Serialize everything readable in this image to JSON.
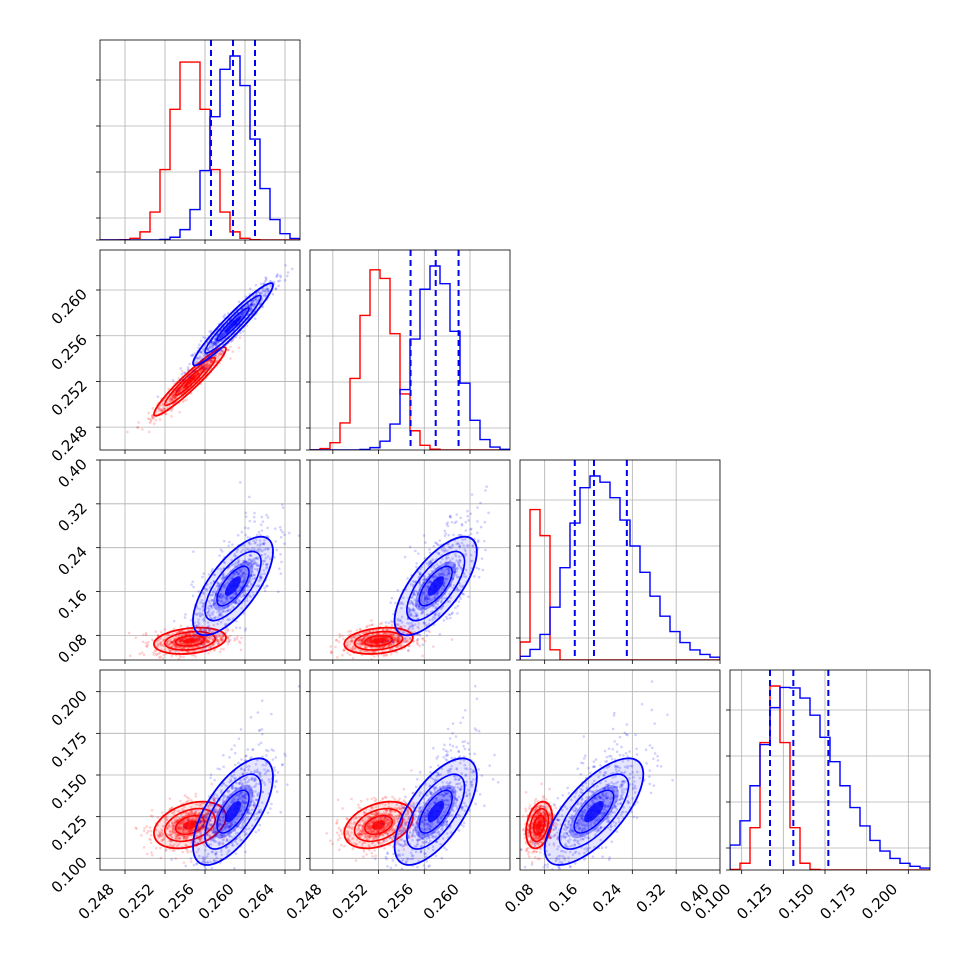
{
  "chart_data": {
    "type": "corner",
    "grid": true,
    "colors": {
      "red": "#ff0000",
      "blue": "#0000ff"
    },
    "parameters": [
      {
        "range": [
          0.2455,
          0.2655
        ],
        "ticks": [
          "0.248",
          "0.252",
          "0.256",
          "0.260",
          "0.264"
        ]
      },
      {
        "range": [
          0.246,
          0.2635
        ],
        "ticks": [
          "0.248",
          "0.252",
          "0.256",
          "0.260"
        ]
      },
      {
        "range": [
          0.035,
          0.4
        ],
        "ticks": [
          "0.08",
          "0.16",
          "0.24",
          "0.32",
          "0.40"
        ]
      },
      {
        "range": [
          0.093,
          0.213
        ],
        "ticks": [
          "0.100",
          "0.125",
          "0.150",
          "0.175",
          "0.200"
        ]
      }
    ],
    "series": [
      {
        "color": "#ff0000",
        "mean": [
          0.2545,
          0.252,
          0.07,
          0.12
        ],
        "sd": [
          0.0018,
          0.0015,
          0.012,
          0.007
        ],
        "corr": [
          [
            1,
            0.95
          ],
          [
            0,
            0.25
          ],
          [
            0,
            0.35
          ],
          [
            1,
            0.25
          ],
          [
            1,
            0.35
          ],
          [
            2,
            0.3
          ]
        ]
      },
      {
        "color": "#0000ff",
        "mean": [
          0.2588,
          0.257,
          0.17,
          0.128
        ],
        "sd": [
          0.002,
          0.0018,
          0.045,
          0.016
        ],
        "corr": [
          [
            1,
            0.95
          ],
          [
            0,
            0.7
          ],
          [
            0,
            0.65
          ],
          [
            1,
            0.7
          ],
          [
            1,
            0.65
          ],
          [
            2,
            0.7
          ]
        ]
      }
    ],
    "quantile_lines": [
      [
        0.2566,
        0.2588,
        0.261
      ],
      [
        0.2548,
        0.257,
        0.259
      ],
      [
        0.135,
        0.17,
        0.23
      ],
      [
        0.117,
        0.131,
        0.152
      ]
    ]
  }
}
